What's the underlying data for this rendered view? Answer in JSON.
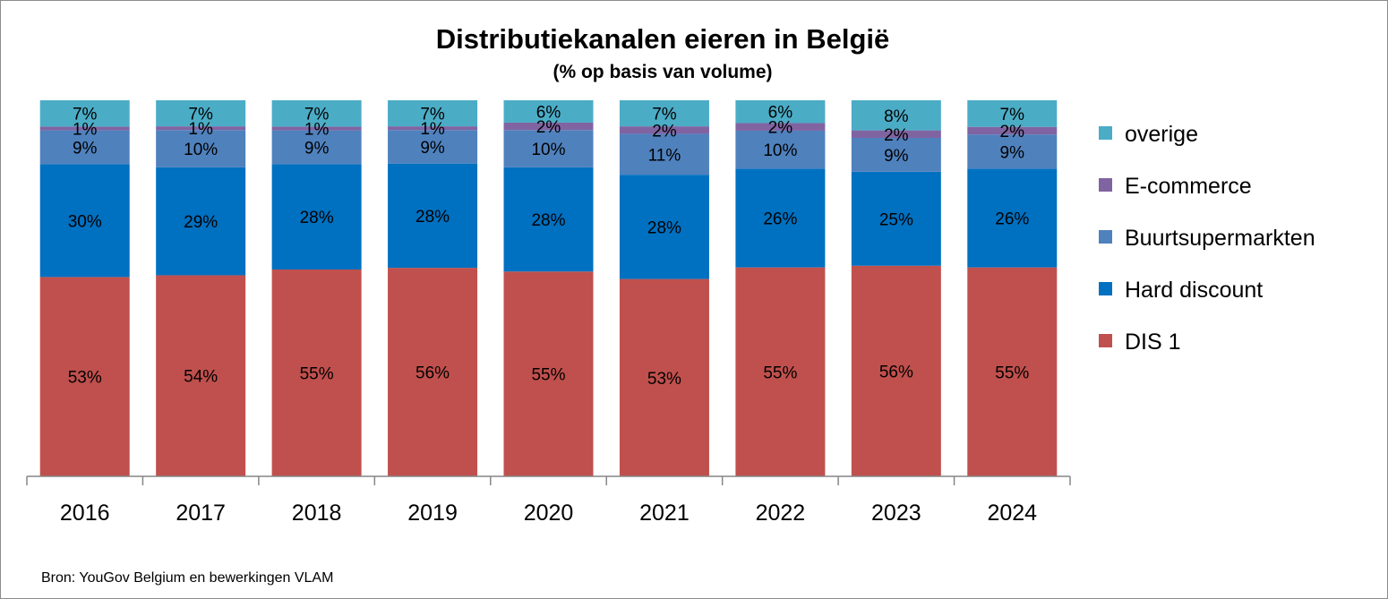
{
  "chart_data": {
    "type": "bar",
    "stacked": true,
    "title": "Distributiekanalen eieren in België",
    "subtitle": "(% op basis van volume)",
    "xlabel": "",
    "ylabel": "",
    "ylim": [
      0,
      100
    ],
    "value_suffix": "%",
    "categories": [
      "2016",
      "2017",
      "2018",
      "2019",
      "2020",
      "2021",
      "2022",
      "2023",
      "2024"
    ],
    "series": [
      {
        "name": "DIS 1",
        "color": "#c0504d",
        "values": [
          53,
          54,
          55,
          56,
          55,
          53,
          55,
          56,
          55
        ]
      },
      {
        "name": "Hard discount",
        "color": "#0070c0",
        "values": [
          30,
          29,
          28,
          28,
          28,
          28,
          26,
          25,
          26
        ]
      },
      {
        "name": "Buurtsupermarkten",
        "color": "#4f81bd",
        "values": [
          9,
          10,
          9,
          9,
          10,
          11,
          10,
          9,
          9
        ]
      },
      {
        "name": "E-commerce",
        "color": "#8064a2",
        "values": [
          1,
          1,
          1,
          1,
          2,
          2,
          2,
          2,
          2
        ]
      },
      {
        "name": "overige",
        "color": "#4bacc6",
        "values": [
          7,
          7,
          7,
          7,
          6,
          7,
          6,
          8,
          7
        ]
      }
    ],
    "legend_position": "right",
    "legend_order": [
      "overige",
      "E-commerce",
      "Buurtsupermarkten",
      "Hard discount",
      "DIS 1"
    ],
    "grid": false,
    "source": "Bron: YouGov Belgium en bewerkingen VLAM"
  }
}
